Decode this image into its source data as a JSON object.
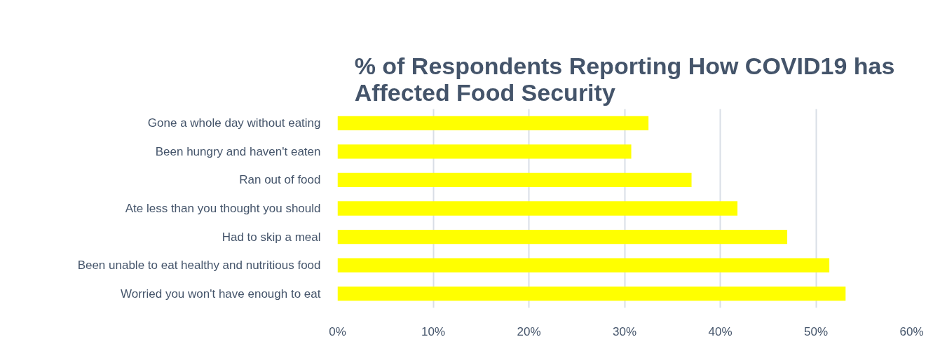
{
  "chart_data": {
    "type": "bar",
    "orientation": "horizontal",
    "title": "% of Respondents Reporting How COVID19 has Affected Food Security",
    "categories": [
      "Gone a whole day without eating",
      "Been hungry and haven't eaten",
      "Ran out of food",
      "Ate less than you thought you should",
      "Had to skip a meal",
      "Been unable to eat healthy and nutritious food",
      "Worried you won't have enough to eat"
    ],
    "values": [
      32.5,
      30.7,
      37.0,
      41.8,
      47.0,
      51.4,
      53.1
    ],
    "color": "#ffff00",
    "xlim": [
      0,
      60
    ],
    "xticks": [
      {
        "value": 0,
        "label": "0%"
      },
      {
        "value": 10,
        "label": "10%"
      },
      {
        "value": 20,
        "label": "20%"
      },
      {
        "value": 30,
        "label": "30%"
      },
      {
        "value": 40,
        "label": "40%"
      },
      {
        "value": 50,
        "label": "50%"
      },
      {
        "value": 60,
        "label": "60%"
      }
    ],
    "grid": "x"
  }
}
